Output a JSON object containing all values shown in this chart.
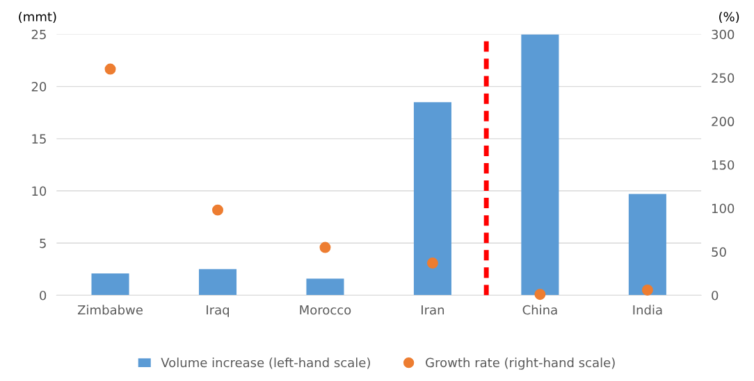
{
  "chart_data": {
    "type": "bar",
    "ylabel": "(mmt)",
    "y2label": "(%)",
    "categories": [
      "Zimbabwe",
      "Iraq",
      "Morocco",
      "Iran",
      "China",
      "India"
    ],
    "series": [
      {
        "name": "Volume increase (left-hand scale)",
        "color": "#5b9bd5",
        "values": [
          2.1,
          2.5,
          1.6,
          18.5,
          25,
          9.7
        ]
      },
      {
        "name": "Growth rate (right-hand scale)",
        "type": "scatter",
        "axis": "y2",
        "color": "#ed7d31",
        "marker": "circle",
        "values": [
          260,
          98,
          55,
          37,
          1,
          6
        ]
      }
    ],
    "ylim": [
      0,
      25
    ],
    "yticks": [
      0,
      5,
      10,
      15,
      20,
      25
    ],
    "y2lim": [
      0,
      300
    ],
    "y2ticks": [
      0,
      50,
      100,
      150,
      200,
      250,
      300
    ],
    "grid": "y",
    "legend": "bottom"
  }
}
